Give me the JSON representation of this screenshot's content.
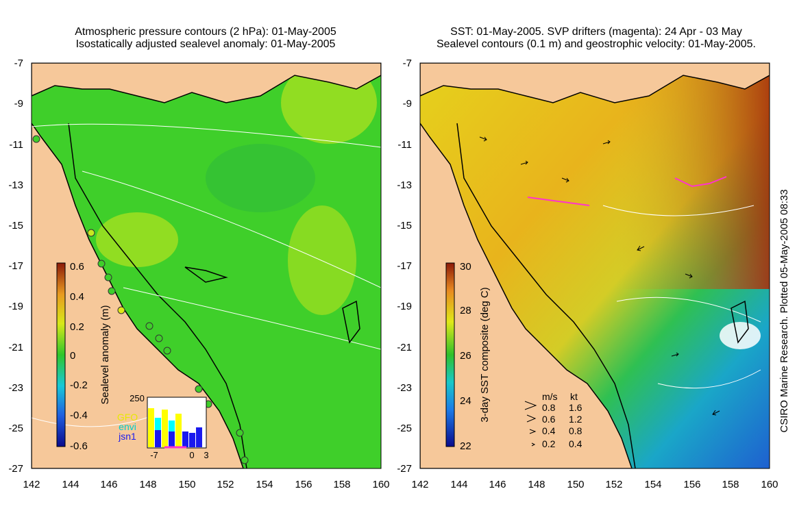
{
  "left_panel": {
    "title_lines": [
      "Atmospheric pressure contours (2 hPa): 01-May-2005",
      "Isostatically adjusted sealevel anomaly: 01-May-2005"
    ],
    "y_ticks": [
      "-7",
      "-9",
      "-11",
      "-13",
      "-15",
      "-17",
      "-19",
      "-21",
      "-23",
      "-25",
      "-27"
    ],
    "x_ticks": [
      "142",
      "144",
      "146",
      "148",
      "150",
      "152",
      "154",
      "156",
      "158",
      "160"
    ],
    "colorbar_label": "Sealevel anomaly (m)",
    "colorbar_ticks": [
      "0.6",
      "0.4",
      "0.2",
      "0",
      "-0.2",
      "-0.4",
      "-0.6"
    ],
    "inset": {
      "ymax_label": "250",
      "legend": [
        "GFO",
        "envi",
        "jsn1"
      ],
      "x_ticks": [
        "-7",
        "0",
        "3"
      ]
    }
  },
  "right_panel": {
    "title_lines": [
      "SST: 01-May-2005. SVP drifters (magenta): 24 Apr - 03 May",
      "Sealevel contours (0.1 m) and geostrophic velocity: 01-May-2005."
    ],
    "y_ticks": [
      "-7",
      "-9",
      "-11",
      "-13",
      "-15",
      "-17",
      "-19",
      "-21",
      "-23",
      "-25",
      "-27"
    ],
    "x_ticks": [
      "142",
      "144",
      "146",
      "148",
      "150",
      "152",
      "154",
      "156",
      "158",
      "160"
    ],
    "colorbar_label": "3-day SST composite (deg C)",
    "colorbar_ticks": [
      "30",
      "28",
      "26",
      "24",
      "22"
    ],
    "velocity_legend": {
      "headers": [
        "m/s",
        "kt"
      ],
      "rows": [
        [
          "0.8",
          "1.6"
        ],
        [
          "0.6",
          "1.2"
        ],
        [
          "0.4",
          "0.8"
        ],
        [
          "0.2",
          "0.4"
        ]
      ]
    }
  },
  "credit": "CSIRO Marine Research. Plotted 05-May-2005 08:33",
  "colors": {
    "land": "#f6c89a",
    "sea_green": "#3fcf2a",
    "coast": "#000000",
    "drifters": "#ff33cc"
  }
}
